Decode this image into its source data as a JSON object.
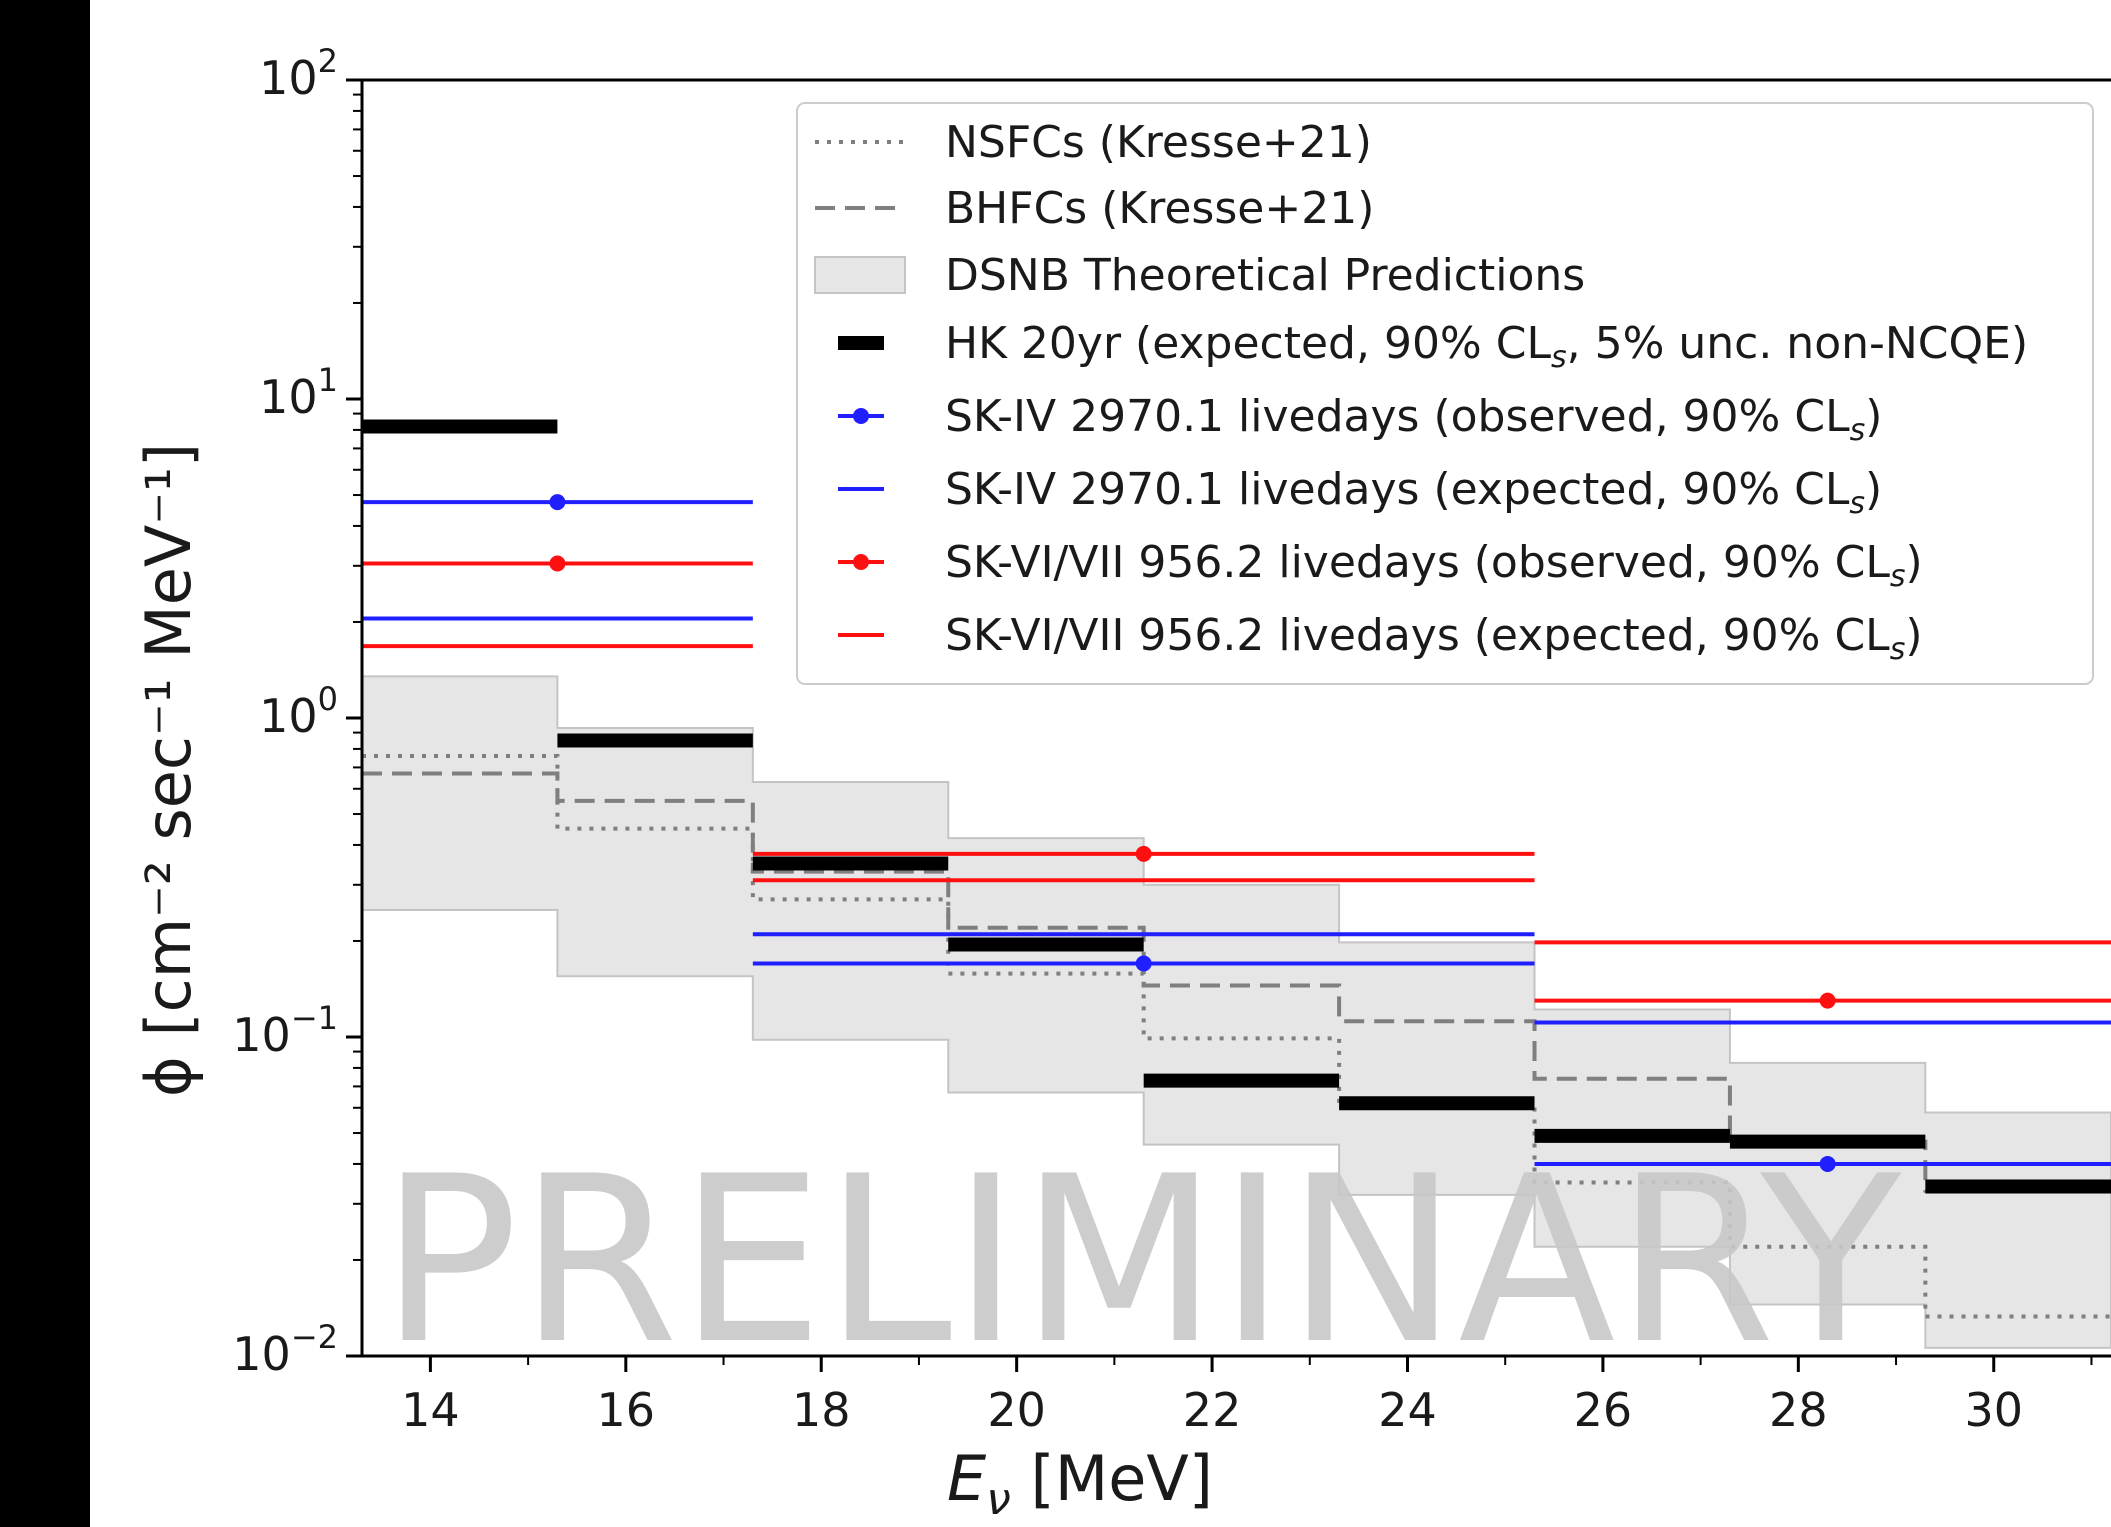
{
  "chart_data": {
    "type": "line",
    "xlabel_main": "E",
    "xlabel_sub": "ν",
    "xlabel_unit": " [MeV]",
    "ylabel": "ϕ [cm⁻² sec⁻¹ MeV⁻¹]",
    "yscale": "log",
    "xlim": [
      13.3,
      31.2
    ],
    "ylim": [
      0.01,
      100
    ],
    "xticks": [
      14,
      16,
      18,
      20,
      22,
      24,
      26,
      28,
      30
    ],
    "xtick_labels": [
      "14",
      "16",
      "18",
      "20",
      "22",
      "24",
      "26",
      "28",
      "30"
    ],
    "yticks": [
      0.01,
      0.1,
      1,
      10,
      100
    ],
    "ytick_base": [
      "10",
      "10",
      "10",
      "10",
      "10"
    ],
    "ytick_exp": [
      "−2",
      "−1",
      "0",
      "1",
      "2"
    ],
    "watermark": "PRELIMINARY",
    "legend_position": "top-right",
    "colors": {
      "black": "#000000",
      "blue": "#1f1fff",
      "red": "#ff1010",
      "gray_line": "#7f7f7f",
      "band": "#d9d9d9",
      "band_edge": "#c4c4c4",
      "watermark": "#c8c8c8"
    },
    "band": {
      "name": "DSNB Theoretical Predictions",
      "bins": [
        {
          "x0": 13.3,
          "x1": 15.3,
          "lo": 0.25,
          "hi": 1.35
        },
        {
          "x0": 15.3,
          "x1": 17.3,
          "lo": 0.155,
          "hi": 0.93
        },
        {
          "x0": 17.3,
          "x1": 19.3,
          "lo": 0.098,
          "hi": 0.63
        },
        {
          "x0": 19.3,
          "x1": 21.3,
          "lo": 0.067,
          "hi": 0.42
        },
        {
          "x0": 21.3,
          "x1": 23.3,
          "lo": 0.046,
          "hi": 0.3
        },
        {
          "x0": 23.3,
          "x1": 25.3,
          "lo": 0.032,
          "hi": 0.198
        },
        {
          "x0": 25.3,
          "x1": 27.3,
          "lo": 0.022,
          "hi": 0.122
        },
        {
          "x0": 27.3,
          "x1": 29.3,
          "lo": 0.0145,
          "hi": 0.083
        },
        {
          "x0": 29.3,
          "x1": 31.2,
          "lo": 0.0106,
          "hi": 0.058
        }
      ]
    },
    "series": [
      {
        "name": "NSFCs (Kresse+21)",
        "style": "dotted",
        "color": "#7f7f7f",
        "edges": [
          13.3,
          15.3,
          17.3,
          19.3,
          21.3,
          23.3,
          25.3,
          27.3,
          29.3,
          31.2
        ],
        "values": [
          0.76,
          0.45,
          0.27,
          0.158,
          0.099,
          0.062,
          0.035,
          0.022,
          0.0133
        ]
      },
      {
        "name": "BHFCs (Kresse+21)",
        "style": "dashed",
        "color": "#7f7f7f",
        "edges": [
          13.3,
          15.3,
          17.3,
          19.3,
          21.3,
          23.3,
          25.3,
          27.3,
          29.3,
          31.2
        ],
        "values": [
          0.67,
          0.55,
          0.33,
          0.22,
          0.145,
          0.112,
          0.074,
          0.047,
          0.033
        ]
      },
      {
        "name": "HK 20yr (expected, 90% CL",
        "name_sub": "s",
        "name_tail": ", 5% unc. non-NCQE)",
        "style": "thick",
        "color": "#000000",
        "segments": [
          {
            "x0": 13.3,
            "x1": 15.3,
            "y": 8.2
          },
          {
            "x0": 15.3,
            "x1": 17.3,
            "y": 0.85
          },
          {
            "x0": 17.3,
            "x1": 19.3,
            "y": 0.35
          },
          {
            "x0": 19.3,
            "x1": 21.3,
            "y": 0.195
          },
          {
            "x0": 21.3,
            "x1": 23.3,
            "y": 0.073
          },
          {
            "x0": 23.3,
            "x1": 25.3,
            "y": 0.062
          },
          {
            "x0": 25.3,
            "x1": 27.3,
            "y": 0.049
          },
          {
            "x0": 27.3,
            "x1": 29.3,
            "y": 0.047
          },
          {
            "x0": 29.3,
            "x1": 31.2,
            "y": 0.034
          }
        ]
      },
      {
        "name": "SK-IV 2970.1 livedays (observed, 90% CL",
        "name_sub": "s",
        "name_tail": ")",
        "style": "marker",
        "color": "#1f1fff",
        "segments": [
          {
            "x0": 13.3,
            "x1": 17.3,
            "y": 4.75,
            "xm": 15.3
          },
          {
            "x0": 17.3,
            "x1": 25.3,
            "y": 0.17,
            "xm": 21.3
          },
          {
            "x0": 25.3,
            "x1": 31.2,
            "y": 0.04,
            "xm": 28.3
          }
        ]
      },
      {
        "name": "SK-IV 2970.1 livedays (expected, 90% CL",
        "name_sub": "s",
        "name_tail": ")",
        "style": "line",
        "color": "#1f1fff",
        "segments": [
          {
            "x0": 13.3,
            "x1": 17.3,
            "y": 2.05
          },
          {
            "x0": 17.3,
            "x1": 25.3,
            "y": 0.21
          },
          {
            "x0": 25.3,
            "x1": 31.2,
            "y": 0.111
          }
        ]
      },
      {
        "name": "SK-VI/VII 956.2 livedays (observed, 90% CL",
        "name_sub": "s",
        "name_tail": ")",
        "style": "marker",
        "color": "#ff1010",
        "segments": [
          {
            "x0": 13.3,
            "x1": 17.3,
            "y": 3.05,
            "xm": 15.3
          },
          {
            "x0": 17.3,
            "x1": 25.3,
            "y": 0.375,
            "xm": 21.3
          },
          {
            "x0": 25.3,
            "x1": 31.2,
            "y": 0.13,
            "xm": 28.3
          }
        ]
      },
      {
        "name": "SK-VI/VII 956.2 livedays (expected, 90% CL",
        "name_sub": "s",
        "name_tail": ")",
        "style": "line",
        "color": "#ff1010",
        "segments": [
          {
            "x0": 13.3,
            "x1": 17.3,
            "y": 1.68
          },
          {
            "x0": 17.3,
            "x1": 25.3,
            "y": 0.31
          },
          {
            "x0": 25.3,
            "x1": 31.2,
            "y": 0.198
          }
        ]
      }
    ]
  }
}
